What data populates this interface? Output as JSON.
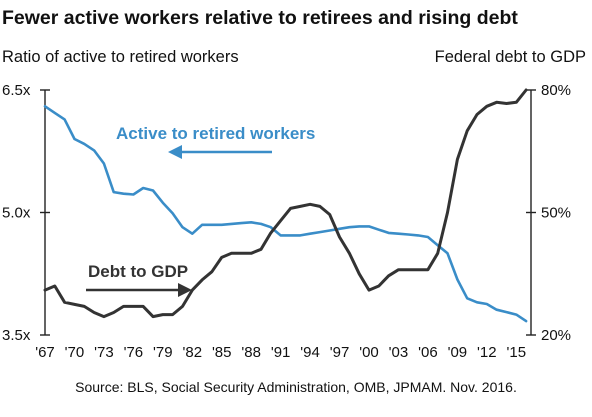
{
  "chart_data": {
    "type": "line",
    "title": "Fewer active workers relative to retirees and rising debt",
    "ylabel_left": "Ratio of active to retired workers",
    "ylabel_right": "Federal debt to GDP",
    "source": "Source: BLS, Social Security Administration, OMB, JPMAM. Nov. 2016.",
    "x_tick_labels": [
      "'67",
      "'70",
      "'73",
      "'76",
      "'79",
      "'82",
      "'85",
      "'88",
      "'91",
      "'94",
      "'97",
      "'00",
      "'03",
      "'06",
      "'09",
      "'12",
      "'15"
    ],
    "xlim": [
      1967,
      2016.5
    ],
    "y_left": {
      "ticks": [
        "3.5x",
        "5.0x",
        "6.5x"
      ],
      "ylim": [
        3.5,
        6.5
      ]
    },
    "y_right": {
      "ticks": [
        "20%",
        "50%",
        "80%"
      ],
      "ylim": [
        20,
        80
      ]
    },
    "colors": {
      "active": "#3a8dc8",
      "debt": "#333333"
    },
    "series": [
      {
        "name": "Active to retired workers",
        "axis": "left",
        "color": "#3a8dc8",
        "x": [
          1967,
          1968,
          1969,
          1970,
          1971,
          1972,
          1973,
          1974,
          1975,
          1976,
          1977,
          1978,
          1979,
          1980,
          1981,
          1982,
          1983,
          1984,
          1985,
          1986,
          1987,
          1988,
          1989,
          1990,
          1991,
          1992,
          1993,
          1994,
          1995,
          1996,
          1997,
          1998,
          1999,
          2000,
          2001,
          2002,
          2003,
          2004,
          2005,
          2006,
          2007,
          2008,
          2009,
          2010,
          2011,
          2012,
          2013,
          2014,
          2015,
          2016
        ],
        "y": [
          6.3,
          6.22,
          6.14,
          5.9,
          5.84,
          5.76,
          5.6,
          5.25,
          5.23,
          5.22,
          5.3,
          5.27,
          5.12,
          4.99,
          4.82,
          4.74,
          4.85,
          4.85,
          4.85,
          4.86,
          4.87,
          4.88,
          4.86,
          4.82,
          4.72,
          4.72,
          4.72,
          4.74,
          4.76,
          4.78,
          4.8,
          4.82,
          4.83,
          4.83,
          4.79,
          4.75,
          4.74,
          4.73,
          4.72,
          4.7,
          4.6,
          4.5,
          4.18,
          3.95,
          3.9,
          3.88,
          3.81,
          3.78,
          3.75,
          3.67
        ]
      },
      {
        "name": "Debt to GDP",
        "axis": "right",
        "color": "#333333",
        "x": [
          1967,
          1968,
          1969,
          1970,
          1971,
          1972,
          1973,
          1974,
          1975,
          1976,
          1977,
          1978,
          1979,
          1980,
          1981,
          1982,
          1983,
          1984,
          1985,
          1986,
          1987,
          1988,
          1989,
          1990,
          1991,
          1992,
          1993,
          1994,
          1995,
          1996,
          1997,
          1998,
          1999,
          2000,
          2001,
          2002,
          2003,
          2004,
          2005,
          2006,
          2007,
          2008,
          2009,
          2010,
          2011,
          2012,
          2013,
          2014,
          2015,
          2016
        ],
        "y": [
          31,
          32,
          28,
          27.5,
          27,
          25.5,
          24.5,
          25.5,
          27,
          27,
          27,
          24.5,
          25,
          25,
          27,
          31,
          33.5,
          35.5,
          39,
          40,
          40,
          40,
          41,
          45,
          48,
          51,
          51.5,
          52,
          51.5,
          49.5,
          44,
          40,
          35,
          31,
          32,
          34.5,
          36,
          36,
          36,
          36,
          40,
          50,
          63,
          70,
          74,
          76,
          77,
          76.7,
          77,
          80
        ]
      }
    ],
    "annotations": [
      "Active to retired workers",
      "Debt to GDP"
    ],
    "grid": false
  }
}
